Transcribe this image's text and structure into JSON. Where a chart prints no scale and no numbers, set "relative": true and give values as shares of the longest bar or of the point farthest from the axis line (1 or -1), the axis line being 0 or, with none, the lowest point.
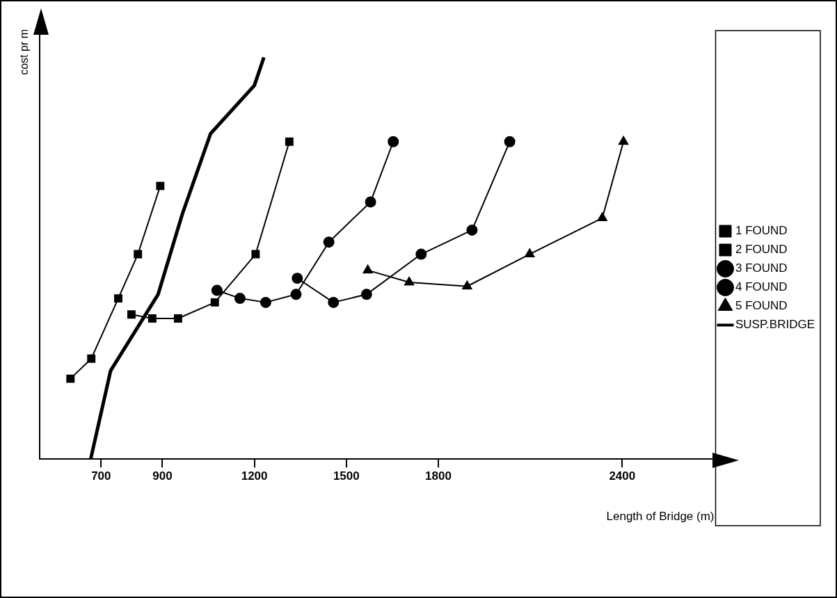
{
  "chart_data": {
    "type": "line",
    "relative": true,
    "xlabel": "Length of Bridge (m)",
    "ylabel": "cost pr m",
    "xlim": [
      500,
      2700
    ],
    "xticks": [
      700,
      900,
      1200,
      1500,
      1800,
      2400
    ],
    "legend": "right",
    "grid": false,
    "series": [
      {
        "name": "1 FOUND",
        "color": "#000000",
        "marker": "square",
        "x": [
          600,
          668,
          756,
          820,
          893
        ],
        "values": [
          0.2,
          0.25,
          0.4,
          0.51,
          0.68
        ]
      },
      {
        "name": "2 FOUND",
        "color": "#000000",
        "marker": "square",
        "x": [
          799,
          867,
          951,
          1071,
          1204,
          1314
        ],
        "values": [
          0.36,
          0.35,
          0.35,
          0.39,
          0.51,
          0.79
        ]
      },
      {
        "name": "3 FOUND",
        "color": "#000000",
        "marker": "circle",
        "x": [
          1078,
          1153,
          1237,
          1336,
          1443,
          1579,
          1653
        ],
        "values": [
          0.42,
          0.4,
          0.39,
          0.41,
          0.54,
          0.64,
          0.79
        ]
      },
      {
        "name": "4 FOUND",
        "color": "#000000",
        "marker": "circle",
        "x": [
          1340,
          1458,
          1566,
          1744,
          1910,
          2033
        ],
        "values": [
          0.45,
          0.39,
          0.41,
          0.51,
          0.57,
          0.79
        ]
      },
      {
        "name": "5 FOUND",
        "color": "#000000",
        "marker": "triangle",
        "x": [
          1570,
          1705,
          1894,
          2098,
          2335,
          2404
        ],
        "values": [
          0.47,
          0.44,
          0.43,
          0.51,
          0.6,
          0.79
        ]
      },
      {
        "name": "SUSP.BRIDGE",
        "color": "#000000",
        "marker": "none",
        "x": [
          666,
          731,
          886,
          965,
          1057,
          1200,
          1231
        ],
        "values": [
          0,
          0.22,
          0.41,
          0.61,
          0.81,
          0.93,
          1.0
        ]
      }
    ]
  }
}
